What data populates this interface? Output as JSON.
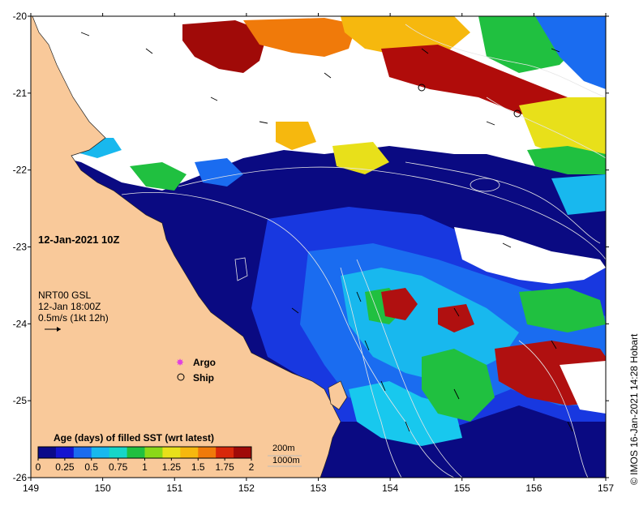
{
  "map": {
    "date_label": "12-Jan-2021 10Z",
    "current_source": "NRT00 GSL",
    "current_time": "12-Jan 18:00Z",
    "current_scale": "0.5m/s (1kt 12h)",
    "legend_argo": "Argo",
    "legend_ship": "Ship",
    "colorbar_title": "Age (days) of filled SST (wrt latest)",
    "colorbar_ticks": [
      "0",
      "0.25",
      "0.5",
      "0.75",
      "1",
      "1.25",
      "1.5",
      "1.75",
      "2"
    ],
    "colorbar_colors": [
      "#0b0a8a",
      "#1414d0",
      "#1a6cf0",
      "#18b8ee",
      "#16d6c8",
      "#20c040",
      "#8ad818",
      "#e8e01a",
      "#f6b80e",
      "#f07a0a",
      "#d8280a",
      "#a00a08"
    ],
    "depth_200": "200m",
    "depth_1000": "1000m",
    "credit": "IMOS 16-Jan-2021 14:28 Hobart",
    "copyright": "©",
    "lat_ticks": [
      "-20",
      "-21",
      "-22",
      "-23",
      "-24",
      "-25",
      "-26"
    ],
    "lon_ticks": [
      "149",
      "150",
      "151",
      "152",
      "153",
      "154",
      "155",
      "156",
      "157"
    ],
    "colors": {
      "land": "#f9c99a",
      "deep_ocean": "#0a0a82",
      "cloud": "#ffffff",
      "argo_marker": "#e040e0"
    }
  }
}
